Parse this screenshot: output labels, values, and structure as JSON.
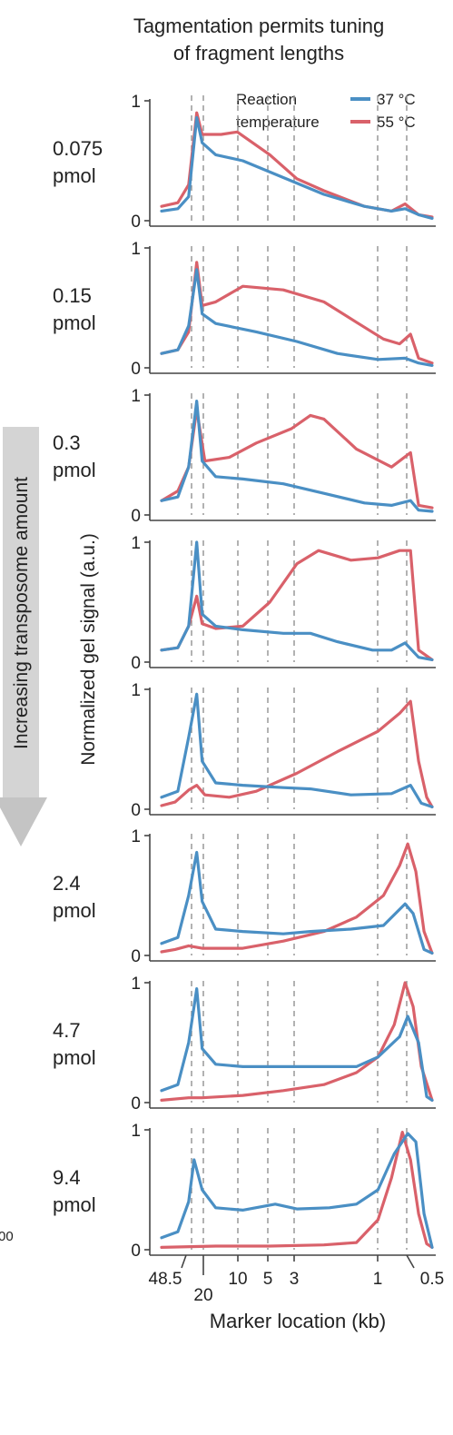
{
  "figure": {
    "title_line1": "Tagmentation permits tuning",
    "title_line2": "of fragment lengths",
    "y_axis_label": "Normalized gel signal (a.u.)",
    "x_axis_label": "Marker location (kb)",
    "side_arrow_label": "Increasing transposome amount",
    "cropped_left_text": "00"
  },
  "legend": {
    "title_line1": "Reaction",
    "title_line2": "temperature",
    "items": [
      {
        "label": "37 °C",
        "color": "#4a8fc4"
      },
      {
        "label": "55 °C",
        "color": "#d9616a"
      }
    ]
  },
  "chart_data": {
    "type": "line",
    "x_markers": [
      "48.5",
      "20",
      "10",
      "5",
      "3",
      "1",
      "0.5"
    ],
    "x_range": [
      0,
      1
    ],
    "ylim": [
      0,
      1
    ],
    "y_ticks": [
      "0",
      "1"
    ],
    "series_colors": {
      "37": "#4a8fc4",
      "55": "#d9616a"
    },
    "panels": [
      {
        "label_line1": "0.075",
        "label_line2": "pmol",
        "s37": [
          [
            0,
            0.08
          ],
          [
            0.06,
            0.1
          ],
          [
            0.1,
            0.2
          ],
          [
            0.13,
            0.86
          ],
          [
            0.15,
            0.65
          ],
          [
            0.2,
            0.55
          ],
          [
            0.3,
            0.5
          ],
          [
            0.45,
            0.36
          ],
          [
            0.6,
            0.22
          ],
          [
            0.75,
            0.12
          ],
          [
            0.85,
            0.08
          ],
          [
            0.9,
            0.1
          ],
          [
            0.95,
            0.05
          ],
          [
            1,
            0.02
          ]
        ],
        "s55": [
          [
            0,
            0.12
          ],
          [
            0.06,
            0.15
          ],
          [
            0.1,
            0.3
          ],
          [
            0.13,
            0.9
          ],
          [
            0.15,
            0.72
          ],
          [
            0.22,
            0.72
          ],
          [
            0.28,
            0.74
          ],
          [
            0.4,
            0.55
          ],
          [
            0.5,
            0.35
          ],
          [
            0.6,
            0.25
          ],
          [
            0.75,
            0.12
          ],
          [
            0.85,
            0.08
          ],
          [
            0.9,
            0.14
          ],
          [
            0.95,
            0.05
          ],
          [
            1,
            0.03
          ]
        ]
      },
      {
        "label_line1": "0.15",
        "label_line2": "pmol",
        "s37": [
          [
            0,
            0.12
          ],
          [
            0.06,
            0.15
          ],
          [
            0.1,
            0.35
          ],
          [
            0.13,
            0.82
          ],
          [
            0.15,
            0.45
          ],
          [
            0.2,
            0.37
          ],
          [
            0.35,
            0.3
          ],
          [
            0.5,
            0.22
          ],
          [
            0.65,
            0.12
          ],
          [
            0.8,
            0.07
          ],
          [
            0.9,
            0.08
          ],
          [
            0.95,
            0.04
          ],
          [
            1,
            0.02
          ]
        ],
        "s55": [
          [
            0,
            0.12
          ],
          [
            0.06,
            0.15
          ],
          [
            0.1,
            0.3
          ],
          [
            0.13,
            0.88
          ],
          [
            0.15,
            0.52
          ],
          [
            0.2,
            0.55
          ],
          [
            0.3,
            0.68
          ],
          [
            0.45,
            0.65
          ],
          [
            0.6,
            0.55
          ],
          [
            0.72,
            0.38
          ],
          [
            0.82,
            0.24
          ],
          [
            0.88,
            0.2
          ],
          [
            0.92,
            0.28
          ],
          [
            0.95,
            0.08
          ],
          [
            1,
            0.04
          ]
        ]
      },
      {
        "label_line1": "0.3",
        "label_line2": "pmol",
        "s37": [
          [
            0,
            0.12
          ],
          [
            0.06,
            0.15
          ],
          [
            0.1,
            0.4
          ],
          [
            0.13,
            0.95
          ],
          [
            0.15,
            0.45
          ],
          [
            0.2,
            0.32
          ],
          [
            0.3,
            0.3
          ],
          [
            0.45,
            0.26
          ],
          [
            0.6,
            0.18
          ],
          [
            0.75,
            0.1
          ],
          [
            0.85,
            0.08
          ],
          [
            0.92,
            0.12
          ],
          [
            0.95,
            0.04
          ],
          [
            1,
            0.03
          ]
        ],
        "s55": [
          [
            0,
            0.12
          ],
          [
            0.06,
            0.2
          ],
          [
            0.1,
            0.4
          ],
          [
            0.13,
            0.88
          ],
          [
            0.16,
            0.45
          ],
          [
            0.25,
            0.48
          ],
          [
            0.35,
            0.6
          ],
          [
            0.48,
            0.72
          ],
          [
            0.55,
            0.83
          ],
          [
            0.6,
            0.8
          ],
          [
            0.72,
            0.55
          ],
          [
            0.85,
            0.4
          ],
          [
            0.92,
            0.52
          ],
          [
            0.95,
            0.08
          ],
          [
            1,
            0.06
          ]
        ]
      },
      {
        "label_line1": "",
        "label_line2": "",
        "s37": [
          [
            0,
            0.1
          ],
          [
            0.06,
            0.12
          ],
          [
            0.1,
            0.3
          ],
          [
            0.13,
            1.0
          ],
          [
            0.15,
            0.4
          ],
          [
            0.2,
            0.3
          ],
          [
            0.3,
            0.27
          ],
          [
            0.45,
            0.24
          ],
          [
            0.55,
            0.24
          ],
          [
            0.65,
            0.17
          ],
          [
            0.78,
            0.1
          ],
          [
            0.85,
            0.1
          ],
          [
            0.9,
            0.16
          ],
          [
            0.95,
            0.04
          ],
          [
            1,
            0.02
          ]
        ],
        "s55": [
          [
            0,
            0.1
          ],
          [
            0.06,
            0.12
          ],
          [
            0.1,
            0.3
          ],
          [
            0.13,
            0.55
          ],
          [
            0.15,
            0.32
          ],
          [
            0.2,
            0.28
          ],
          [
            0.3,
            0.3
          ],
          [
            0.4,
            0.5
          ],
          [
            0.5,
            0.82
          ],
          [
            0.58,
            0.93
          ],
          [
            0.7,
            0.85
          ],
          [
            0.8,
            0.87
          ],
          [
            0.88,
            0.93
          ],
          [
            0.92,
            0.93
          ],
          [
            0.95,
            0.1
          ],
          [
            1,
            0.02
          ]
        ]
      },
      {
        "label_line1": "",
        "label_line2": "",
        "s37": [
          [
            0,
            0.1
          ],
          [
            0.06,
            0.15
          ],
          [
            0.1,
            0.6
          ],
          [
            0.13,
            0.96
          ],
          [
            0.15,
            0.4
          ],
          [
            0.2,
            0.22
          ],
          [
            0.3,
            0.2
          ],
          [
            0.45,
            0.18
          ],
          [
            0.55,
            0.17
          ],
          [
            0.7,
            0.12
          ],
          [
            0.85,
            0.13
          ],
          [
            0.92,
            0.2
          ],
          [
            0.96,
            0.05
          ],
          [
            1,
            0.02
          ]
        ],
        "s55": [
          [
            0,
            0.03
          ],
          [
            0.05,
            0.06
          ],
          [
            0.1,
            0.16
          ],
          [
            0.13,
            0.2
          ],
          [
            0.16,
            0.12
          ],
          [
            0.25,
            0.1
          ],
          [
            0.35,
            0.15
          ],
          [
            0.5,
            0.3
          ],
          [
            0.65,
            0.48
          ],
          [
            0.8,
            0.65
          ],
          [
            0.88,
            0.8
          ],
          [
            0.92,
            0.9
          ],
          [
            0.95,
            0.4
          ],
          [
            0.98,
            0.1
          ],
          [
            1,
            0.02
          ]
        ]
      },
      {
        "label_line1": "2.4",
        "label_line2": "pmol",
        "s37": [
          [
            0,
            0.1
          ],
          [
            0.06,
            0.15
          ],
          [
            0.1,
            0.5
          ],
          [
            0.13,
            0.86
          ],
          [
            0.15,
            0.45
          ],
          [
            0.2,
            0.22
          ],
          [
            0.3,
            0.2
          ],
          [
            0.45,
            0.18
          ],
          [
            0.55,
            0.2
          ],
          [
            0.7,
            0.22
          ],
          [
            0.82,
            0.25
          ],
          [
            0.9,
            0.43
          ],
          [
            0.93,
            0.35
          ],
          [
            0.97,
            0.05
          ],
          [
            1,
            0.02
          ]
        ],
        "s55": [
          [
            0,
            0.03
          ],
          [
            0.05,
            0.05
          ],
          [
            0.1,
            0.08
          ],
          [
            0.15,
            0.06
          ],
          [
            0.3,
            0.06
          ],
          [
            0.45,
            0.12
          ],
          [
            0.6,
            0.2
          ],
          [
            0.72,
            0.32
          ],
          [
            0.82,
            0.5
          ],
          [
            0.88,
            0.75
          ],
          [
            0.91,
            0.93
          ],
          [
            0.94,
            0.7
          ],
          [
            0.97,
            0.2
          ],
          [
            1,
            0.02
          ]
        ]
      },
      {
        "label_line1": "4.7",
        "label_line2": "pmol",
        "s37": [
          [
            0,
            0.1
          ],
          [
            0.06,
            0.15
          ],
          [
            0.1,
            0.5
          ],
          [
            0.13,
            0.95
          ],
          [
            0.15,
            0.45
          ],
          [
            0.2,
            0.32
          ],
          [
            0.3,
            0.3
          ],
          [
            0.45,
            0.3
          ],
          [
            0.6,
            0.3
          ],
          [
            0.72,
            0.3
          ],
          [
            0.8,
            0.38
          ],
          [
            0.88,
            0.55
          ],
          [
            0.91,
            0.72
          ],
          [
            0.95,
            0.5
          ],
          [
            0.98,
            0.05
          ],
          [
            1,
            0.02
          ]
        ],
        "s55": [
          [
            0,
            0.02
          ],
          [
            0.1,
            0.04
          ],
          [
            0.15,
            0.04
          ],
          [
            0.3,
            0.06
          ],
          [
            0.45,
            0.1
          ],
          [
            0.6,
            0.15
          ],
          [
            0.72,
            0.25
          ],
          [
            0.8,
            0.38
          ],
          [
            0.86,
            0.65
          ],
          [
            0.9,
            1.0
          ],
          [
            0.93,
            0.8
          ],
          [
            0.96,
            0.3
          ],
          [
            1,
            0.02
          ]
        ]
      },
      {
        "label_line1": "9.4",
        "label_line2": "pmol",
        "s37": [
          [
            0,
            0.1
          ],
          [
            0.06,
            0.15
          ],
          [
            0.1,
            0.4
          ],
          [
            0.12,
            0.75
          ],
          [
            0.15,
            0.5
          ],
          [
            0.2,
            0.35
          ],
          [
            0.3,
            0.33
          ],
          [
            0.42,
            0.38
          ],
          [
            0.5,
            0.34
          ],
          [
            0.62,
            0.35
          ],
          [
            0.72,
            0.38
          ],
          [
            0.8,
            0.5
          ],
          [
            0.86,
            0.8
          ],
          [
            0.91,
            0.97
          ],
          [
            0.94,
            0.9
          ],
          [
            0.97,
            0.3
          ],
          [
            1,
            0.02
          ]
        ],
        "s55": [
          [
            0,
            0.02
          ],
          [
            0.2,
            0.03
          ],
          [
            0.4,
            0.03
          ],
          [
            0.6,
            0.04
          ],
          [
            0.72,
            0.06
          ],
          [
            0.8,
            0.25
          ],
          [
            0.85,
            0.6
          ],
          [
            0.89,
            0.98
          ],
          [
            0.92,
            0.75
          ],
          [
            0.95,
            0.3
          ],
          [
            0.98,
            0.05
          ],
          [
            1,
            0.02
          ]
        ]
      }
    ]
  }
}
